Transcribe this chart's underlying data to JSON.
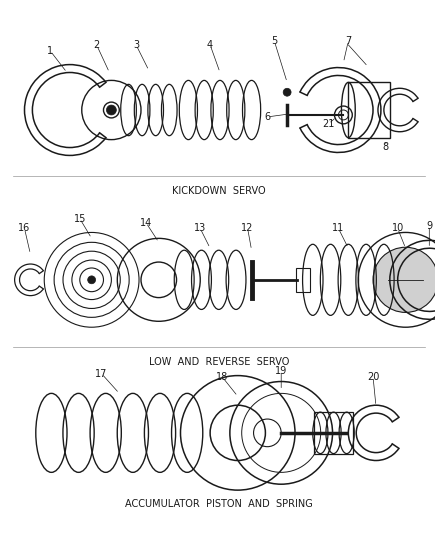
{
  "bg_color": "#ffffff",
  "line_color": "#1a1a1a",
  "title_kickdown": "KICKDOWN  SERVO",
  "title_low_reverse": "LOW  AND  REVERSE  SERVO",
  "title_accumulator": "ACCUMULATOR  PISTON  AND  SPRING",
  "font_size_labels": 7,
  "font_size_title": 7
}
